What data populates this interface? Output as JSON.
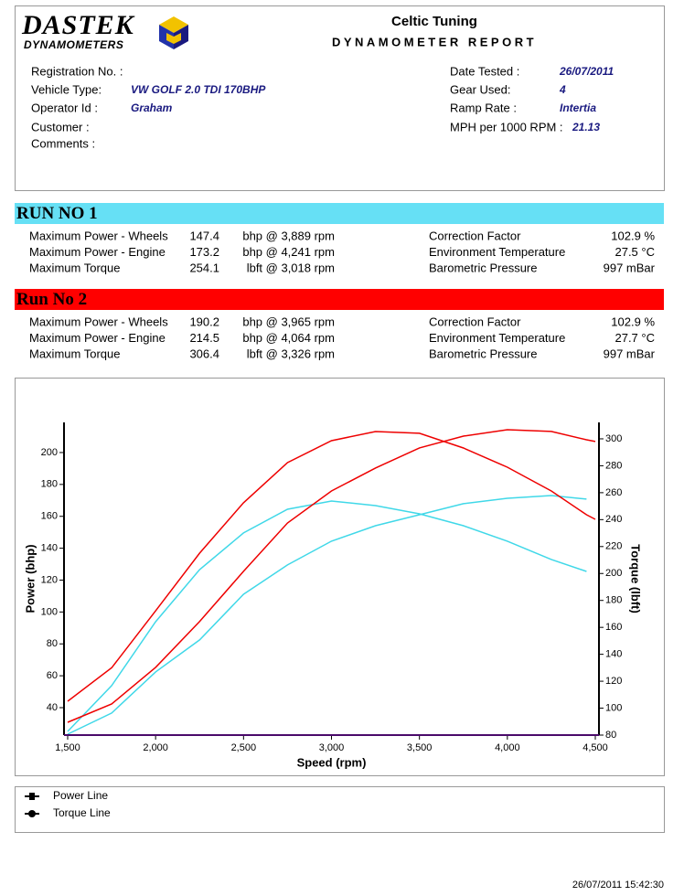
{
  "header": {
    "logo_main": "DASTEK",
    "logo_sub": "DYNAMOMETERS",
    "title": "Celtic Tuning",
    "subtitle": "DYNAMOMETER REPORT"
  },
  "info_left": [
    {
      "label": "Registration No. :",
      "value": null
    },
    {
      "label": "Vehicle Type:",
      "value": "VW GOLF 2.0 TDI 170BHP"
    },
    {
      "label": "Operator Id :",
      "value": "Graham"
    },
    {
      "label": "Customer :",
      "value": null
    },
    {
      "label": "Comments :",
      "value": null
    }
  ],
  "info_right": [
    {
      "label": "Date Tested :",
      "value": "26/07/2011"
    },
    {
      "label": "Gear Used:",
      "value": "4"
    },
    {
      "label": "Ramp Rate :",
      "value": "Intertia"
    },
    {
      "label": "MPH per 1000 RPM :",
      "value": "21.13"
    }
  ],
  "runs": [
    {
      "title": "RUN NO 1",
      "color": "#66e0f5",
      "rows": [
        {
          "label": "Maximum Power - Wheels",
          "value": 147.4,
          "detail": "bhp @ 3,889 rpm"
        },
        {
          "label": "Maximum Power - Engine",
          "value": 173.2,
          "detail": "bhp @ 4,241 rpm"
        },
        {
          "label": "Maximum Torque",
          "value": 254.1,
          "detail": "lbft @ 3,018 rpm"
        }
      ],
      "env": [
        {
          "label": "Correction Factor",
          "value": "102.9 %"
        },
        {
          "label": "Environment Temperature",
          "value": "27.5 °C"
        },
        {
          "label": "Barometric Pressure",
          "value": "997 mBar"
        }
      ]
    },
    {
      "title": "Run No 2",
      "color": "#ff0000",
      "rows": [
        {
          "label": "Maximum Power - Wheels",
          "value": 190.2,
          "detail": "bhp @ 3,965 rpm"
        },
        {
          "label": "Maximum Power - Engine",
          "value": 214.5,
          "detail": "bhp @ 4,064 rpm"
        },
        {
          "label": "Maximum Torque",
          "value": 306.4,
          "detail": "lbft @ 3,326 rpm"
        }
      ],
      "env": [
        {
          "label": "Correction Factor",
          "value": "102.9 %"
        },
        {
          "label": "Environment Temperature",
          "value": "27.7 °C"
        },
        {
          "label": "Barometric Pressure",
          "value": "997 mBar"
        }
      ]
    }
  ],
  "chart_data": {
    "type": "line",
    "x_label": "Speed (rpm)",
    "y_label": "Power (bhp)",
    "y2_label": "Torque (lbft)",
    "x": [
      1500,
      1750,
      2000,
      2250,
      2500,
      2750,
      3000,
      3250,
      3500,
      3750,
      4000,
      4250,
      4450,
      4500
    ],
    "xlim": [
      1500,
      4500
    ],
    "xticks": [
      {
        "value": 1500,
        "label": "1,500"
      },
      {
        "value": 2000,
        "label": "2,000"
      },
      {
        "value": 2500,
        "label": "2,500"
      },
      {
        "value": 3000,
        "label": "3,000"
      },
      {
        "value": 3500,
        "label": "3,500"
      },
      {
        "value": 4000,
        "label": "4,000"
      },
      {
        "value": 4500,
        "label": "4,500"
      }
    ],
    "ylim": [
      22.8,
      218.9
    ],
    "yticks": [
      40,
      60,
      80,
      100,
      120,
      140,
      160,
      180,
      200
    ],
    "y2lim": [
      80,
      312.2
    ],
    "y2ticks": [
      80,
      100,
      120,
      140,
      160,
      180,
      200,
      220,
      240,
      260,
      280,
      300
    ],
    "series": [
      {
        "color": "#40d8e8",
        "axis": "y",
        "values": [
          23.4,
          36.6,
          62.4,
          82.5,
          111.1,
          129.5,
          144.4,
          154.1,
          161.0,
          167.9,
          171.3,
          173.0,
          170.8,
          null
        ]
      },
      {
        "color": "#40d8e8",
        "axis": "y2",
        "values": [
          82.7,
          116.7,
          164.2,
          202.9,
          230.1,
          247.7,
          253.8,
          250.4,
          244.3,
          235.5,
          224.0,
          210.4,
          201.5,
          null
        ]
      },
      {
        "color": "#ee0000",
        "axis": "y",
        "values": [
          30.8,
          42.3,
          65.3,
          94.0,
          125.5,
          155.8,
          175.9,
          190.3,
          202.9,
          210.3,
          214.3,
          213.2,
          208.0,
          206.9
        ]
      },
      {
        "color": "#ee0000",
        "axis": "y2",
        "values": [
          105.1,
          130.0,
          172.3,
          215.1,
          252.5,
          282.3,
          298.6,
          305.4,
          304.1,
          293.2,
          278.9,
          261.3,
          243.6,
          240.2
        ]
      }
    ]
  },
  "legend": [
    "Power Line",
    "Torque Line"
  ],
  "footer": "26/07/2011 15:42:30"
}
